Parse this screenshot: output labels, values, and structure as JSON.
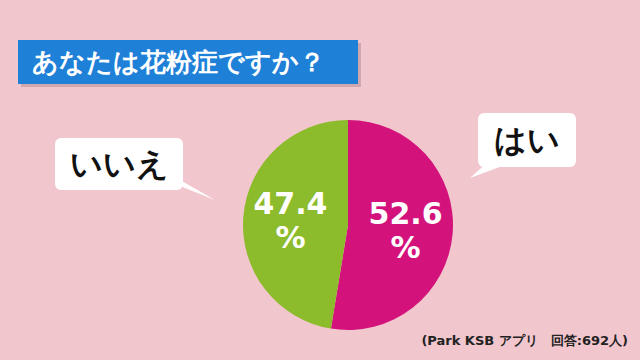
{
  "chart_data": {
    "type": "pie",
    "title": "あなたは花粉症ですか？",
    "categories": [
      "はい",
      "いいえ"
    ],
    "values": [
      52.6,
      47.4
    ],
    "value_labels": [
      "52.6%",
      "47.4%"
    ],
    "colors": [
      "#d4127c",
      "#8cbb2b"
    ],
    "data_labels": true,
    "annotation": "(Park KSB アプリ　回答:692人)"
  }
}
